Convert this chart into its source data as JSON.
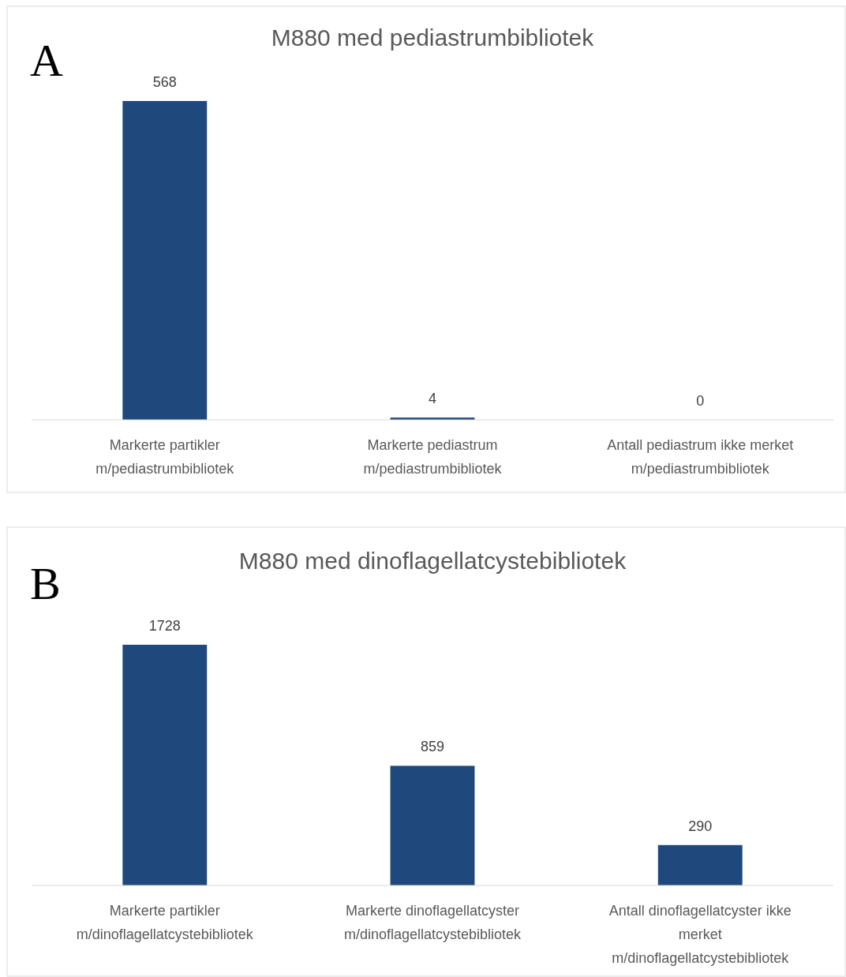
{
  "chart_data": [
    {
      "type": "bar",
      "title": "M880 med pediastrumbibliotek",
      "annotations": [
        "A"
      ],
      "categories": [
        "Markerte partikler m/pediastrumbibliotek",
        "Markerte pediastrum m/pediastrumbibliotek",
        "Antall pediastrum ikke merket m/pediastrumbibliotek"
      ],
      "values": [
        568,
        4,
        0
      ],
      "color": "#1f497d",
      "data_labels": true
    },
    {
      "type": "bar",
      "title": "M880 med dinoflagellatcystebibliotek",
      "annotations": [
        "B"
      ],
      "categories": [
        "Markerte partikler m/dinoflagellatcystebibliotek",
        "Markerte dinoflagellatcyster m/dinoflagellatcystebibliotek",
        "Antall dinoflagellatcyster ikke merket m/dinoflagellatcystebibliotek"
      ],
      "values": [
        1728,
        859,
        290
      ],
      "color": "#1f497d",
      "data_labels": true
    }
  ]
}
